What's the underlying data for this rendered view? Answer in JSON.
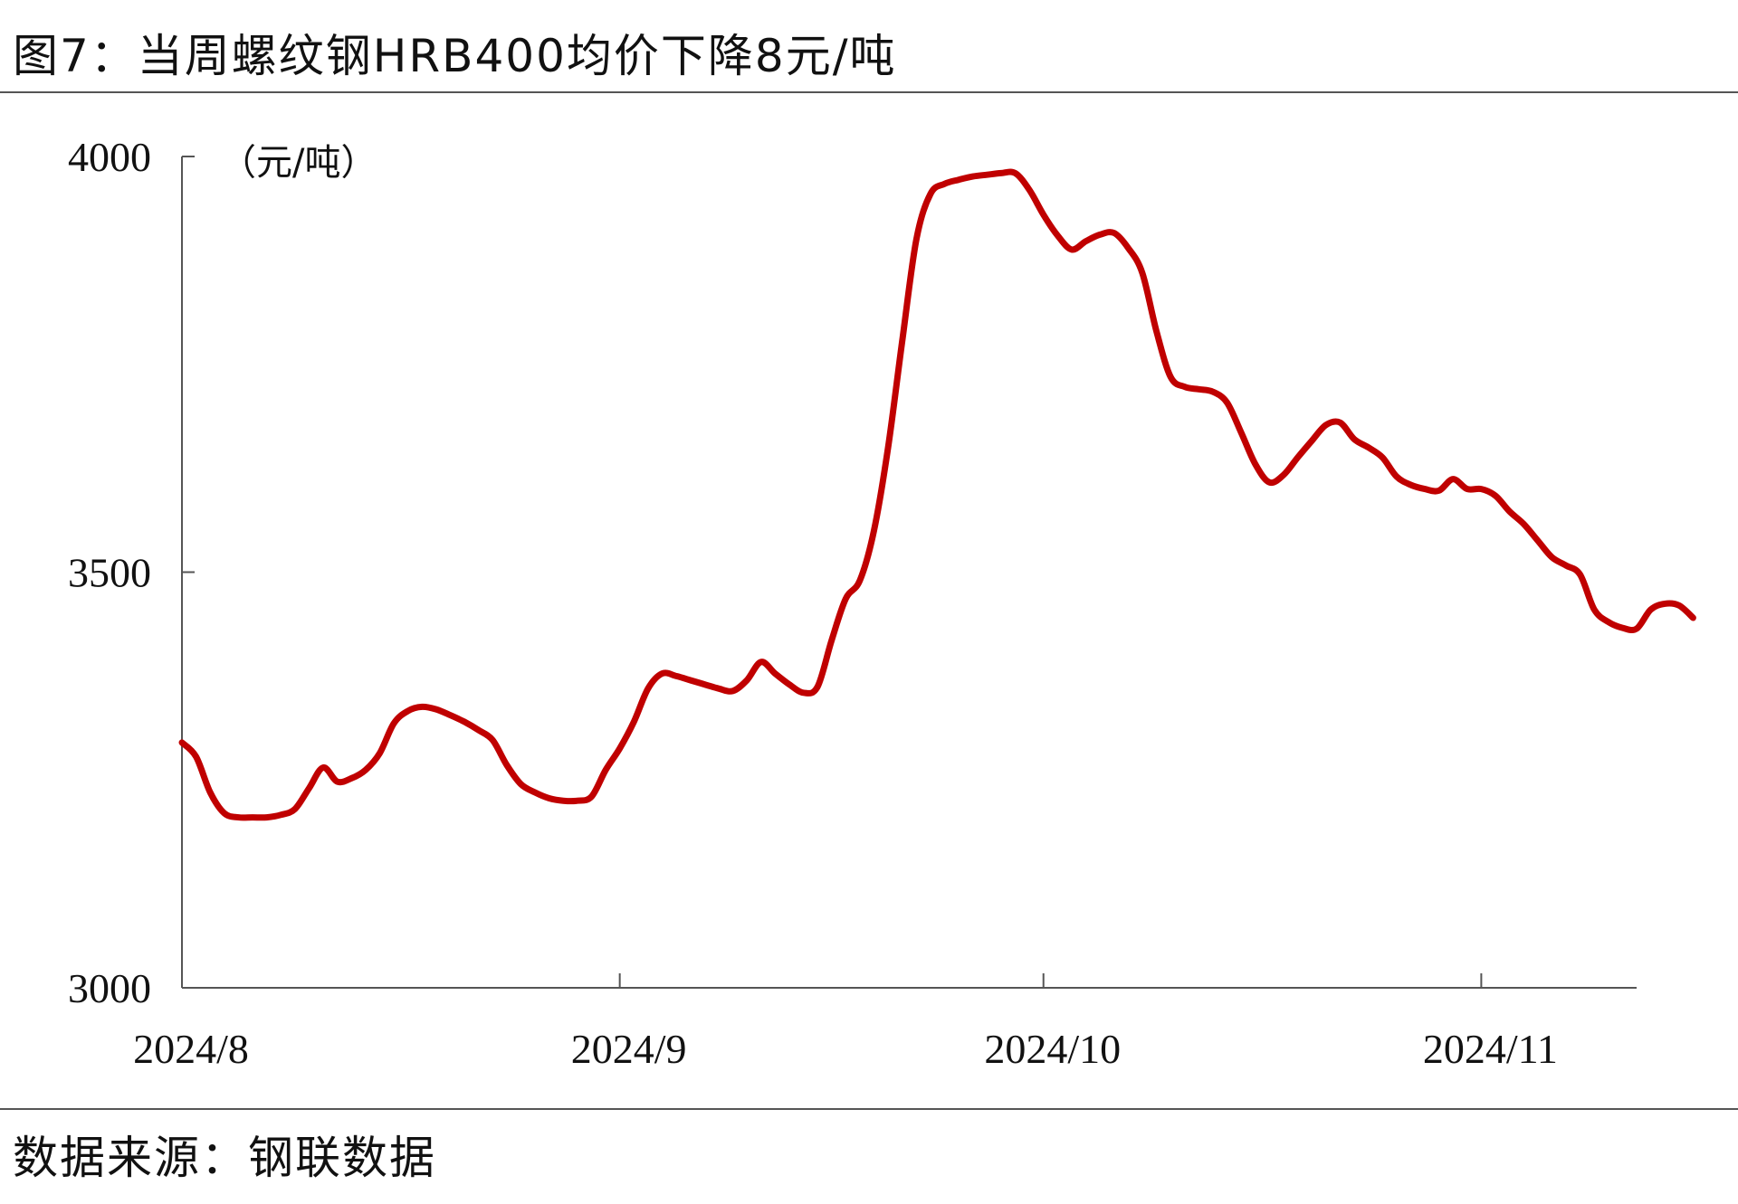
{
  "figure": {
    "title": "图7：当周螺纹钢HRB400均价下降8元/吨",
    "source": "数据来源：钢联数据"
  },
  "chart_data": {
    "type": "line",
    "unit_label": "（元/吨）",
    "ylim": [
      3000,
      4000
    ],
    "y_ticks": [
      3000,
      3500,
      4000
    ],
    "x_ticks": [
      {
        "label": "2024/8",
        "date": "2024-08-01"
      },
      {
        "label": "2024/9",
        "date": "2024-09-01"
      },
      {
        "label": "2024/10",
        "date": "2024-10-01"
      },
      {
        "label": "2024/11",
        "date": "2024-11-01"
      }
    ],
    "xlim": [
      "2024-08-01",
      "2024-11-12"
    ],
    "grid": false,
    "color": "#C00000",
    "series": [
      {
        "name": "",
        "points": [
          [
            "2024-08-01",
            3295
          ],
          [
            "2024-08-02",
            3278
          ],
          [
            "2024-08-03",
            3235
          ],
          [
            "2024-08-04",
            3210
          ],
          [
            "2024-08-05",
            3205
          ],
          [
            "2024-08-06",
            3205
          ],
          [
            "2024-08-07",
            3205
          ],
          [
            "2024-08-08",
            3208
          ],
          [
            "2024-08-09",
            3215
          ],
          [
            "2024-08-10",
            3240
          ],
          [
            "2024-08-11",
            3265
          ],
          [
            "2024-08-12",
            3248
          ],
          [
            "2024-08-13",
            3252
          ],
          [
            "2024-08-14",
            3262
          ],
          [
            "2024-08-15",
            3282
          ],
          [
            "2024-08-16",
            3318
          ],
          [
            "2024-08-17",
            3333
          ],
          [
            "2024-08-18",
            3338
          ],
          [
            "2024-08-19",
            3335
          ],
          [
            "2024-08-20",
            3328
          ],
          [
            "2024-08-21",
            3320
          ],
          [
            "2024-08-22",
            3310
          ],
          [
            "2024-08-23",
            3298
          ],
          [
            "2024-08-24",
            3268
          ],
          [
            "2024-08-25",
            3245
          ],
          [
            "2024-08-26",
            3235
          ],
          [
            "2024-08-27",
            3228
          ],
          [
            "2024-08-28",
            3225
          ],
          [
            "2024-08-29",
            3225
          ],
          [
            "2024-08-30",
            3230
          ],
          [
            "2024-08-31",
            3262
          ],
          [
            "2024-09-01",
            3288
          ],
          [
            "2024-09-02",
            3320
          ],
          [
            "2024-09-03",
            3360
          ],
          [
            "2024-09-04",
            3378
          ],
          [
            "2024-09-05",
            3375
          ],
          [
            "2024-09-06",
            3370
          ],
          [
            "2024-09-07",
            3365
          ],
          [
            "2024-09-08",
            3360
          ],
          [
            "2024-09-09",
            3357
          ],
          [
            "2024-09-10",
            3370
          ],
          [
            "2024-09-11",
            3392
          ],
          [
            "2024-09-12",
            3378
          ],
          [
            "2024-09-13",
            3365
          ],
          [
            "2024-09-14",
            3355
          ],
          [
            "2024-09-15",
            3362
          ],
          [
            "2024-09-16",
            3418
          ],
          [
            "2024-09-17",
            3468
          ],
          [
            "2024-09-18",
            3490
          ],
          [
            "2024-09-19",
            3550
          ],
          [
            "2024-09-20",
            3650
          ],
          [
            "2024-09-21",
            3778
          ],
          [
            "2024-09-22",
            3900
          ],
          [
            "2024-09-23",
            3955
          ],
          [
            "2024-09-24",
            3967
          ],
          [
            "2024-09-25",
            3972
          ],
          [
            "2024-09-26",
            3976
          ],
          [
            "2024-09-27",
            3978
          ],
          [
            "2024-09-28",
            3980
          ],
          [
            "2024-09-29",
            3980
          ],
          [
            "2024-09-30",
            3960
          ],
          [
            "2024-10-01",
            3930
          ],
          [
            "2024-10-02",
            3905
          ],
          [
            "2024-10-03",
            3888
          ],
          [
            "2024-10-04",
            3898
          ],
          [
            "2024-10-05",
            3906
          ],
          [
            "2024-10-06",
            3908
          ],
          [
            "2024-10-07",
            3890
          ],
          [
            "2024-10-08",
            3860
          ],
          [
            "2024-10-09",
            3790
          ],
          [
            "2024-10-10",
            3735
          ],
          [
            "2024-10-11",
            3723
          ],
          [
            "2024-10-12",
            3720
          ],
          [
            "2024-10-13",
            3717
          ],
          [
            "2024-10-14",
            3704
          ],
          [
            "2024-10-15",
            3668
          ],
          [
            "2024-10-16",
            3630
          ],
          [
            "2024-10-17",
            3608
          ],
          [
            "2024-10-18",
            3617
          ],
          [
            "2024-10-19",
            3638
          ],
          [
            "2024-10-20",
            3658
          ],
          [
            "2024-10-21",
            3677
          ],
          [
            "2024-10-22",
            3680
          ],
          [
            "2024-10-23",
            3660
          ],
          [
            "2024-10-24",
            3650
          ],
          [
            "2024-10-25",
            3638
          ],
          [
            "2024-10-26",
            3615
          ],
          [
            "2024-10-27",
            3605
          ],
          [
            "2024-10-28",
            3600
          ],
          [
            "2024-10-29",
            3598
          ],
          [
            "2024-10-30",
            3612
          ],
          [
            "2024-10-31",
            3600
          ],
          [
            "2024-11-01",
            3600
          ],
          [
            "2024-11-02",
            3592
          ],
          [
            "2024-11-03",
            3573
          ],
          [
            "2024-11-04",
            3558
          ],
          [
            "2024-11-05",
            3538
          ],
          [
            "2024-11-06",
            3518
          ],
          [
            "2024-11-07",
            3508
          ],
          [
            "2024-11-08",
            3497
          ],
          [
            "2024-11-09",
            3455
          ],
          [
            "2024-11-10",
            3440
          ],
          [
            "2024-11-11",
            3433
          ],
          [
            "2024-11-12",
            3432
          ],
          [
            "2024-11-13",
            3455
          ],
          [
            "2024-11-14",
            3462
          ],
          [
            "2024-11-15",
            3460
          ],
          [
            "2024-11-16",
            3445
          ]
        ]
      }
    ]
  }
}
